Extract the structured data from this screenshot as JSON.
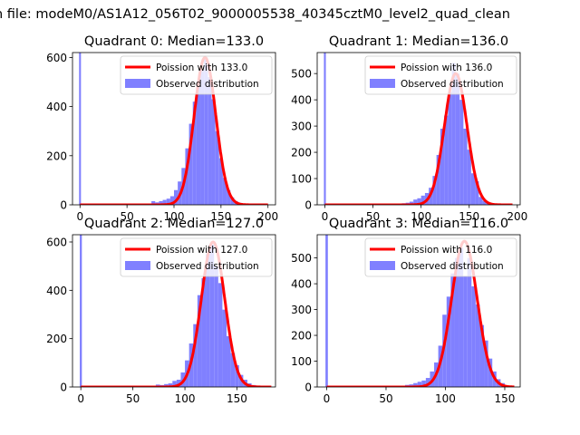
{
  "figure": {
    "suptitle": "n file: modeM0/AS1A12_056T02_9000005538_40345cztM0_level2_quad_clean"
  },
  "colors": {
    "bars": "#8080ff",
    "spike": "#7f7fff",
    "fit": "#ff0000",
    "axis": "#000000",
    "background": "#ffffff"
  },
  "chart_data": [
    {
      "type": "bar",
      "title": "Quadrant 0: Median=133.0",
      "median": 133.0,
      "xlim": [
        -8,
        208
      ],
      "ylim": [
        0,
        620
      ],
      "xticks": [
        0,
        50,
        100,
        150,
        200
      ],
      "yticks": [
        0,
        200,
        400,
        600
      ],
      "legend": {
        "placement": "upper-right",
        "fit_label": "Poission with 133.0",
        "bars_label": "Observed distribution"
      },
      "spike": {
        "x": 0,
        "value": 620
      },
      "histogram": {
        "bin_width": 4,
        "x": [
          76,
          80,
          84,
          88,
          92,
          96,
          100,
          104,
          108,
          112,
          116,
          120,
          124,
          128,
          132,
          136,
          140,
          144,
          148,
          152,
          156,
          160,
          164,
          168,
          172,
          176
        ],
        "values": [
          15,
          10,
          15,
          20,
          25,
          35,
          60,
          95,
          150,
          230,
          330,
          420,
          480,
          550,
          600,
          520,
          430,
          300,
          190,
          110,
          60,
          30,
          15,
          8,
          4,
          2
        ]
      },
      "fit": {
        "mu": 133.0,
        "peak": 600,
        "x_range": [
          0,
          200
        ]
      }
    },
    {
      "type": "bar",
      "title": "Quadrant 1: Median=136.0",
      "median": 136.0,
      "xlim": [
        -8,
        203
      ],
      "ylim": [
        0,
        580
      ],
      "xticks": [
        0,
        50,
        100,
        150,
        200
      ],
      "yticks": [
        0,
        100,
        200,
        300,
        400,
        500
      ],
      "legend": {
        "placement": "upper-right",
        "fit_label": "Poission with 136.0",
        "bars_label": "Observed distribution"
      },
      "spike": {
        "x": 0,
        "value": 580
      },
      "histogram": {
        "bin_width": 4,
        "x": [
          76,
          80,
          84,
          88,
          92,
          96,
          100,
          104,
          108,
          112,
          116,
          120,
          124,
          128,
          132,
          136,
          140,
          144,
          148,
          152,
          156,
          160,
          164,
          168,
          172,
          176
        ],
        "values": [
          5,
          6,
          8,
          12,
          20,
          25,
          35,
          45,
          65,
          110,
          190,
          290,
          340,
          430,
          540,
          500,
          400,
          290,
          210,
          120,
          90,
          30,
          15,
          8,
          4,
          2
        ]
      },
      "fit": {
        "mu": 136.0,
        "peak": 500,
        "x_range": [
          0,
          195
        ]
      }
    },
    {
      "type": "bar",
      "title": "Quadrant 2: Median=127.0",
      "median": 127.0,
      "xlim": [
        -8,
        187
      ],
      "ylim": [
        0,
        630
      ],
      "xticks": [
        0,
        50,
        100,
        150
      ],
      "yticks": [
        0,
        200,
        400,
        600
      ],
      "legend": {
        "placement": "upper-right",
        "fit_label": "Poission with 127.0",
        "bars_label": "Observed distribution"
      },
      "spike": {
        "x": 0,
        "value": 630
      },
      "histogram": {
        "bin_width": 4,
        "x": [
          72,
          76,
          80,
          84,
          88,
          92,
          96,
          100,
          104,
          108,
          112,
          116,
          120,
          124,
          128,
          132,
          136,
          140,
          144,
          148,
          152,
          156,
          160,
          164,
          168
        ],
        "values": [
          10,
          8,
          12,
          15,
          25,
          30,
          60,
          110,
          180,
          260,
          380,
          450,
          550,
          590,
          500,
          430,
          320,
          210,
          140,
          90,
          50,
          30,
          15,
          8,
          3
        ]
      },
      "fit": {
        "mu": 127.0,
        "peak": 600,
        "x_range": [
          0,
          183
        ]
      }
    },
    {
      "type": "bar",
      "title": "Quadrant 3: Median=116.0",
      "median": 116.0,
      "xlim": [
        -8,
        163
      ],
      "ylim": [
        0,
        590
      ],
      "xticks": [
        0,
        50,
        100,
        150
      ],
      "yticks": [
        0,
        100,
        200,
        300,
        400,
        500
      ],
      "legend": {
        "placement": "upper-right",
        "fit_label": "Poission with 116.0",
        "bars_label": "Observed distribution"
      },
      "spike": {
        "x": 0,
        "value": 590
      },
      "histogram": {
        "bin_width": 3.5,
        "x": [
          66,
          69.5,
          73,
          76.5,
          80,
          83.5,
          87,
          90.5,
          94,
          97.5,
          101,
          104.5,
          108,
          111.5,
          115,
          118.5,
          122,
          125.5,
          129,
          132.5,
          136,
          139.5,
          143,
          146.5,
          150
        ],
        "values": [
          8,
          10,
          15,
          20,
          25,
          35,
          60,
          95,
          160,
          280,
          350,
          440,
          500,
          540,
          430,
          500,
          390,
          320,
          240,
          180,
          110,
          60,
          30,
          15,
          5
        ]
      },
      "fit": {
        "mu": 116.0,
        "peak": 565,
        "x_range": [
          0,
          158
        ]
      }
    }
  ]
}
